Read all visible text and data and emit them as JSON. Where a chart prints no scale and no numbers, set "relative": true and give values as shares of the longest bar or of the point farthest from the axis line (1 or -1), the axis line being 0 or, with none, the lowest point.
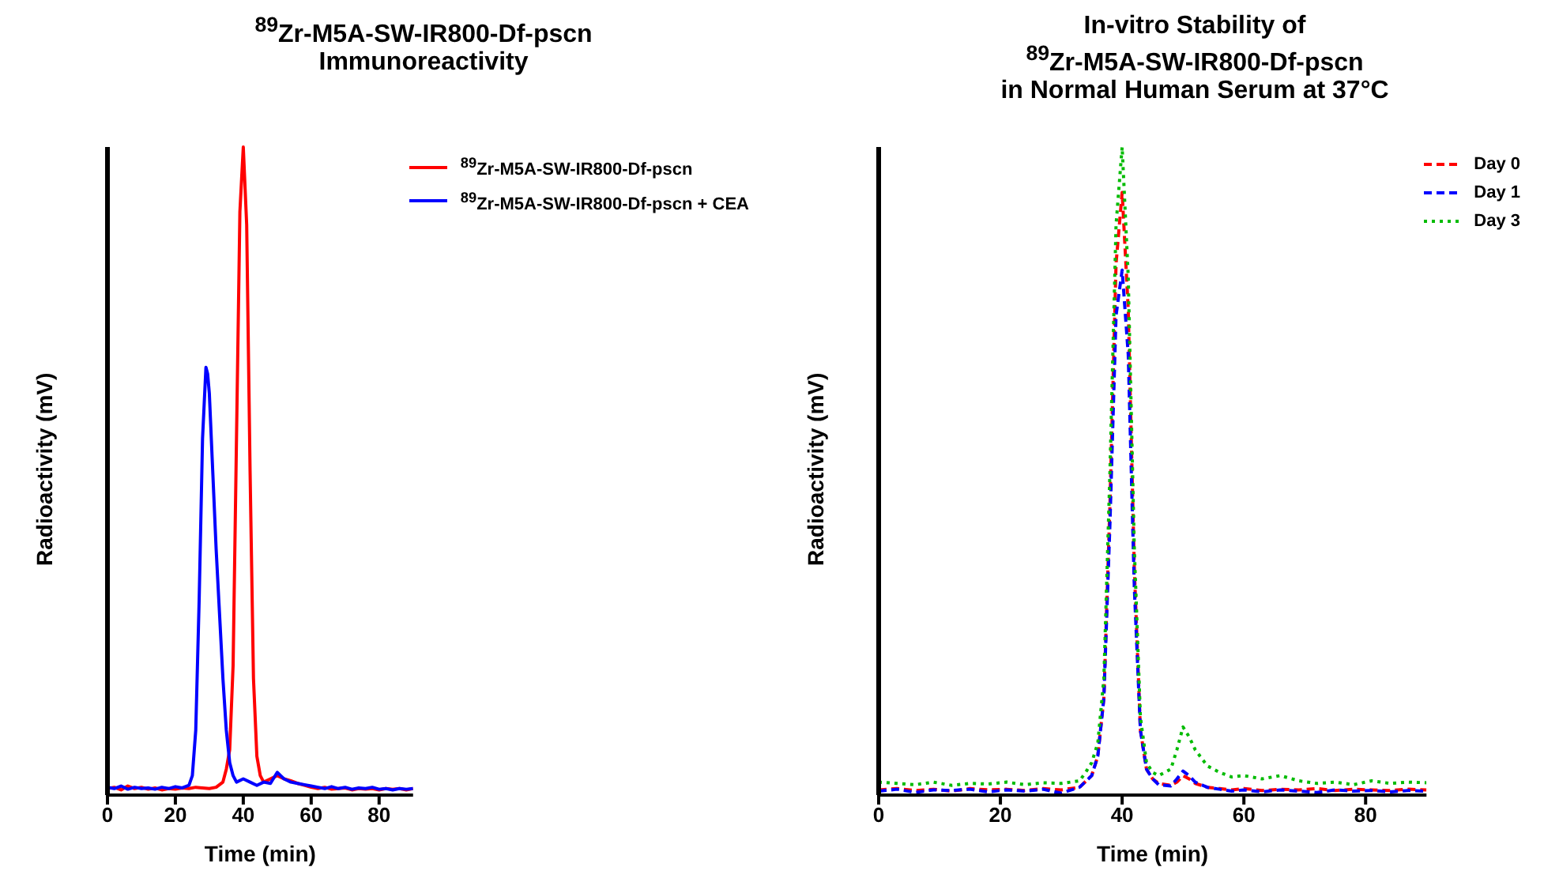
{
  "chart_data": [
    {
      "type": "line",
      "title": "$^{89}$Zr-M5A-SW-IR800-Df-pscn\nImmunoreactivity",
      "xlabel": "Time (min)",
      "ylabel": "Radioactivity (mV)",
      "relative": true,
      "xlim": [
        0,
        90
      ],
      "xticks": [
        0,
        20,
        40,
        60,
        80
      ],
      "legend": "top right",
      "line_style": "solid",
      "series": [
        {
          "name": "$^{89}$Zr-M5A-SW-IR800-Df-pscn",
          "color": "#ff0000",
          "x": [
            0,
            2,
            4,
            6,
            8,
            10,
            12,
            14,
            16,
            18,
            20,
            22,
            24,
            26,
            28,
            30,
            32,
            34,
            35,
            36,
            37,
            38,
            39,
            40,
            41,
            42,
            43,
            44,
            45,
            46,
            48,
            50,
            52,
            54,
            56,
            58,
            60,
            62,
            64,
            66,
            68,
            70,
            72,
            74,
            76,
            78,
            80,
            82,
            84,
            86,
            88,
            90
          ],
          "values": [
            0.01,
            0.012,
            0.008,
            0.014,
            0.01,
            0.012,
            0.009,
            0.011,
            0.008,
            0.01,
            0.009,
            0.011,
            0.01,
            0.012,
            0.011,
            0.01,
            0.012,
            0.02,
            0.04,
            0.07,
            0.2,
            0.55,
            0.9,
            1,
            0.88,
            0.5,
            0.18,
            0.06,
            0.03,
            0.02,
            0.025,
            0.03,
            0.025,
            0.022,
            0.018,
            0.015,
            0.012,
            0.01,
            0.012,
            0.009,
            0.01,
            0.011,
            0.008,
            0.01,
            0.009,
            0.01,
            0.008,
            0.01,
            0.009,
            0.01,
            0.008,
            0.01
          ]
        },
        {
          "name": "$^{89}$Zr-M5A-SW-IR800-Df-pscn +  CEA",
          "color": "#0000ff",
          "x": [
            0,
            2,
            4,
            6,
            8,
            10,
            12,
            14,
            16,
            18,
            20,
            22,
            24,
            25,
            26,
            27,
            28,
            29,
            29.5,
            30,
            31,
            32,
            33,
            34,
            35,
            36,
            37,
            38,
            40,
            42,
            44,
            46,
            48,
            50,
            51,
            52,
            54,
            56,
            58,
            60,
            62,
            64,
            66,
            68,
            70,
            72,
            74,
            76,
            78,
            80,
            82,
            84,
            86,
            88,
            90
          ],
          "values": [
            0.012,
            0.01,
            0.014,
            0.009,
            0.012,
            0.01,
            0.011,
            0.009,
            0.012,
            0.01,
            0.013,
            0.011,
            0.015,
            0.03,
            0.1,
            0.3,
            0.55,
            0.66,
            0.65,
            0.62,
            0.5,
            0.38,
            0.28,
            0.18,
            0.1,
            0.05,
            0.03,
            0.02,
            0.025,
            0.02,
            0.015,
            0.02,
            0.018,
            0.035,
            0.03,
            0.025,
            0.02,
            0.018,
            0.016,
            0.014,
            0.012,
            0.01,
            0.013,
            0.01,
            0.012,
            0.009,
            0.011,
            0.01,
            0.012,
            0.009,
            0.01,
            0.008,
            0.01,
            0.009,
            0.01
          ]
        }
      ]
    },
    {
      "type": "line",
      "title": "In-vitro Stability of\n$^{89}$Zr-M5A-SW-IR800-Df-pscn\nin Normal Human Serum at 37°C",
      "xlabel": "Time (min)",
      "ylabel": "Radioactivity (mV)",
      "relative": true,
      "xlim": [
        0,
        90
      ],
      "xticks": [
        0,
        20,
        40,
        60,
        80
      ],
      "legend": "top right",
      "series": [
        {
          "name": "Day 0",
          "color": "#ff0000",
          "line_style": "dashed",
          "x": [
            0,
            3,
            6,
            9,
            12,
            15,
            18,
            21,
            24,
            27,
            30,
            33,
            35,
            36,
            37,
            38,
            39,
            40,
            41,
            42,
            43,
            44,
            45,
            46,
            48,
            49,
            50,
            51,
            52,
            54,
            56,
            58,
            60,
            63,
            66,
            69,
            72,
            75,
            78,
            81,
            84,
            87,
            90
          ],
          "values": [
            0.008,
            0.01,
            0.007,
            0.009,
            0.006,
            0.01,
            0.008,
            0.009,
            0.007,
            0.01,
            0.008,
            0.012,
            0.03,
            0.06,
            0.15,
            0.45,
            0.82,
            0.93,
            0.75,
            0.35,
            0.1,
            0.04,
            0.025,
            0.018,
            0.015,
            0.02,
            0.03,
            0.025,
            0.018,
            0.012,
            0.01,
            0.008,
            0.01,
            0.007,
            0.009,
            0.008,
            0.01,
            0.007,
            0.009,
            0.008,
            0.007,
            0.009,
            0.008
          ]
        },
        {
          "name": "Day 1",
          "color": "#0000ff",
          "line_style": "dashed",
          "x": [
            0,
            3,
            6,
            9,
            12,
            15,
            18,
            21,
            24,
            27,
            30,
            33,
            35,
            36,
            37,
            38,
            39,
            40,
            41,
            42,
            43,
            44,
            45,
            46,
            48,
            49,
            50,
            51,
            52,
            54,
            56,
            58,
            60,
            63,
            66,
            69,
            72,
            75,
            78,
            81,
            84,
            87,
            90
          ],
          "values": [
            0.006,
            0.009,
            0.004,
            0.008,
            0.007,
            0.009,
            0.005,
            0.008,
            0.006,
            0.009,
            0.003,
            0.012,
            0.03,
            0.06,
            0.15,
            0.42,
            0.74,
            0.81,
            0.68,
            0.32,
            0.1,
            0.04,
            0.025,
            0.016,
            0.014,
            0.025,
            0.037,
            0.03,
            0.02,
            0.012,
            0.009,
            0.006,
            0.008,
            0.005,
            0.008,
            0.006,
            0.004,
            0.008,
            0.006,
            0.007,
            0.005,
            0.007,
            0.006
          ]
        },
        {
          "name": "Day 3",
          "color": "#00bb00",
          "line_style": "dotted",
          "x": [
            0,
            3,
            6,
            9,
            12,
            15,
            18,
            21,
            24,
            27,
            30,
            33,
            34,
            35,
            36,
            37,
            38,
            39,
            40,
            41,
            42,
            43,
            44,
            45,
            46,
            48,
            49,
            50,
            51,
            52,
            54,
            56,
            58,
            60,
            63,
            66,
            69,
            72,
            75,
            78,
            81,
            84,
            87,
            90
          ],
          "values": [
            0.02,
            0.018,
            0.016,
            0.02,
            0.015,
            0.018,
            0.017,
            0.02,
            0.016,
            0.019,
            0.018,
            0.022,
            0.035,
            0.05,
            0.08,
            0.18,
            0.5,
            0.88,
            1,
            0.8,
            0.38,
            0.12,
            0.05,
            0.035,
            0.03,
            0.04,
            0.07,
            0.105,
            0.09,
            0.07,
            0.045,
            0.035,
            0.028,
            0.03,
            0.025,
            0.03,
            0.022,
            0.018,
            0.02,
            0.016,
            0.022,
            0.018,
            0.02,
            0.019
          ]
        }
      ]
    }
  ]
}
